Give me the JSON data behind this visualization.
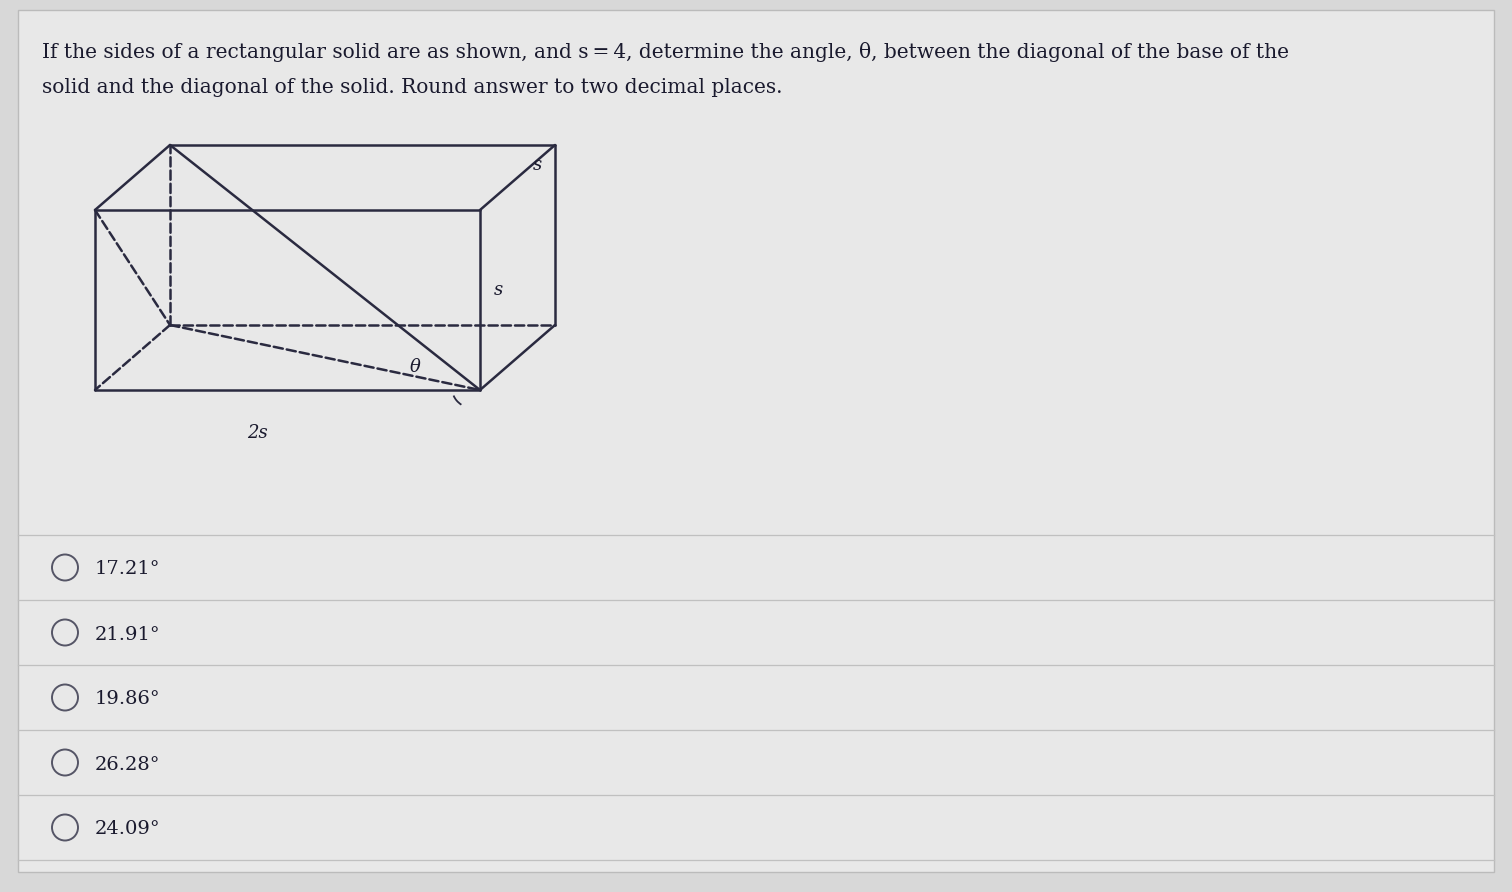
{
  "label_2s": "2s",
  "label_s1": "s",
  "label_s2": "s",
  "label_theta": "θ",
  "choices": [
    "17.21°",
    "21.91°",
    "19.86°",
    "26.28°",
    "24.09°"
  ],
  "bg_color": "#d8d8d8",
  "box_color": "#e8e8e8",
  "line_color": "#2a2a40",
  "dashed_color": "#2a2a40",
  "text_color": "#1a1a2e",
  "choice_color": "#1a1a2e",
  "font_size_title": 14.5,
  "font_size_labels": 13,
  "font_size_choices": 14,
  "title_line1": "If the sides of a rectangular solid are as shown, and s = 4, determine the angle, θ, between the diagonal of the base of the",
  "title_line2": "solid and the diagonal of the solid. Round answer to two decimal places."
}
